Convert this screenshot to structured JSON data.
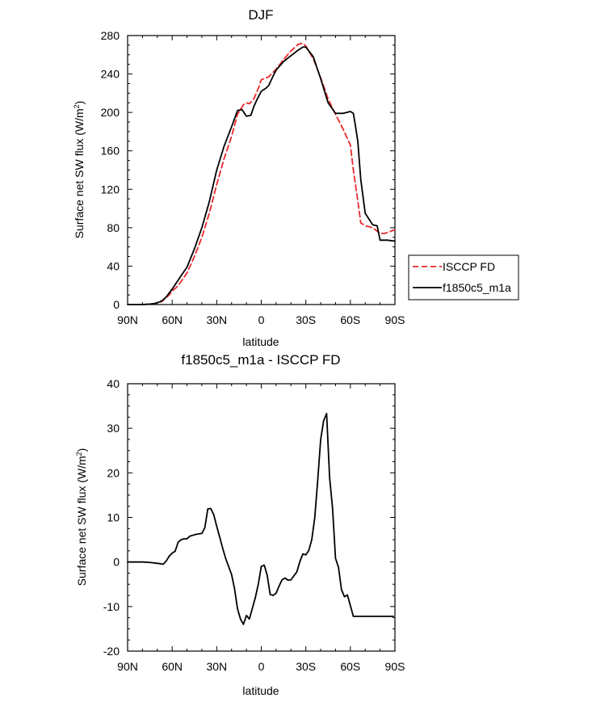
{
  "chart_data": [
    {
      "type": "line",
      "title": "DJF",
      "xlabel": "latitude",
      "ylabel": "Surface net SW flux (W/m",
      "ylabel_superscript": "2",
      "ylabel_suffix": ")",
      "xlim": [
        -90,
        90
      ],
      "ylim": [
        0,
        280
      ],
      "xticks": [
        -90,
        -60,
        -30,
        0,
        30,
        60,
        90
      ],
      "xtick_labels": [
        "90N",
        "60N",
        "30N",
        "0",
        "30S",
        "60S",
        "90S"
      ],
      "yticks": [
        0,
        40,
        80,
        120,
        160,
        200,
        240,
        280
      ],
      "ytick_labels": [
        "0",
        "40",
        "80",
        "120",
        "160",
        "200",
        "240",
        "280"
      ],
      "grid": false,
      "legend_position": "right",
      "series": [
        {
          "name": "ISCCP FD",
          "color": "#e8292b",
          "style": "dashed",
          "x": [
            -80,
            -75,
            -72,
            -70,
            -67,
            -65,
            -62,
            -60,
            -57,
            -54,
            -50,
            -45,
            -40,
            -35,
            -30,
            -25,
            -20,
            -16,
            -12,
            -10,
            -8,
            -5,
            -2,
            0,
            5,
            10,
            15,
            20,
            25,
            28,
            30,
            35,
            40,
            45,
            50,
            55,
            60,
            62,
            65,
            67,
            70,
            75,
            80,
            83,
            87,
            90
          ],
          "values": [
            0,
            0.5,
            1,
            2,
            3,
            6,
            10,
            14,
            18,
            24,
            33,
            50,
            70,
            95,
            125,
            152,
            175,
            198,
            208,
            210,
            209,
            214,
            225,
            234,
            237,
            245,
            255,
            264,
            271,
            272,
            269,
            256,
            236,
            214,
            198,
            183,
            166,
            140,
            108,
            85,
            82,
            80,
            74,
            74,
            76,
            78
          ]
        },
        {
          "name": "f1850c5_m1a",
          "color": "#000000",
          "style": "solid",
          "x": [
            -90,
            -85,
            -80,
            -75,
            -72,
            -70,
            -68,
            -66,
            -64,
            -62,
            -60,
            -57,
            -54,
            -50,
            -45,
            -40,
            -35,
            -30,
            -25,
            -20,
            -16,
            -13,
            -10,
            -7,
            -5,
            -3,
            0,
            3,
            5,
            8,
            10,
            15,
            20,
            25,
            28,
            30,
            35,
            40,
            45,
            50,
            55,
            60,
            62,
            63,
            65,
            67,
            70,
            75,
            78,
            80,
            85,
            90
          ],
          "values": [
            0,
            0,
            0,
            0.5,
            1,
            2,
            3,
            5,
            8,
            12,
            16,
            23,
            30,
            39,
            58,
            80,
            107,
            140,
            165,
            185,
            202,
            203,
            196,
            197,
            206,
            213,
            222,
            225,
            228,
            238,
            244,
            253,
            259,
            265,
            268,
            268,
            258,
            235,
            210,
            199,
            199,
            201,
            199,
            190,
            170,
            130,
            95,
            83,
            82,
            67,
            67,
            66
          ]
        }
      ]
    },
    {
      "type": "line",
      "title": "f1850c5_m1a - ISCCP FD",
      "xlabel": "latitude",
      "ylabel": "Surface net SW flux (W/m",
      "ylabel_superscript": "2",
      "ylabel_suffix": ")",
      "xlim": [
        -90,
        90
      ],
      "ylim": [
        -20,
        40
      ],
      "xticks": [
        -90,
        -60,
        -30,
        0,
        30,
        60,
        90
      ],
      "xtick_labels": [
        "90N",
        "60N",
        "30N",
        "0",
        "30S",
        "60S",
        "90S"
      ],
      "yticks": [
        -20,
        -10,
        0,
        10,
        20,
        30,
        40
      ],
      "ytick_labels": [
        "-20",
        "-10",
        "0",
        "10",
        "20",
        "30",
        "40"
      ],
      "grid": false,
      "series": [
        {
          "color": "#000000",
          "style": "solid",
          "x": [
            -90,
            -85,
            -80,
            -75,
            -70,
            -66,
            -64,
            -62,
            -60,
            -58,
            -56,
            -54,
            -52,
            -50,
            -48,
            -46,
            -44,
            -42,
            -40,
            -38,
            -36,
            -34,
            -32,
            -30,
            -28,
            -26,
            -24,
            -22,
            -20,
            -18,
            -16,
            -14,
            -12,
            -10,
            -8,
            -6,
            -4,
            -2,
            0,
            2,
            4,
            6,
            8,
            10,
            12,
            14,
            16,
            18,
            20,
            22,
            24,
            26,
            28,
            30,
            32,
            34,
            36,
            38,
            40,
            42,
            44,
            46,
            48,
            50,
            52,
            54,
            56,
            58,
            60,
            62,
            64,
            66,
            68,
            70,
            72,
            74,
            76,
            78,
            80,
            82,
            84,
            86,
            89
          ],
          "values": [
            0,
            0,
            0,
            -0.1,
            -0.3,
            -0.5,
            0.2,
            1.3,
            2,
            2.4,
            4.4,
            5,
            5.2,
            5.2,
            5.8,
            6,
            6.2,
            6.3,
            6.4,
            7.7,
            11.9,
            12,
            10.6,
            8,
            5.6,
            3.1,
            0.8,
            -1,
            -2.8,
            -6,
            -10.5,
            -12.8,
            -14,
            -12,
            -12.8,
            -10.4,
            -8,
            -5,
            -1,
            -0.7,
            -3,
            -7.3,
            -7.5,
            -7,
            -5.4,
            -4,
            -3.6,
            -4.1,
            -4,
            -3.1,
            -2.2,
            0.1,
            1.8,
            1.6,
            2.6,
            5,
            9.9,
            18.3,
            27.5,
            31.7,
            33.3,
            19,
            12,
            0.8,
            -1.2,
            -6.2,
            -7.8,
            -7.4,
            -9.8,
            -12.2,
            -12.2,
            -12.2,
            -12.2,
            -12.2,
            -12.2,
            -12.2,
            -12.2,
            -12.2,
            -12.2,
            -12.2,
            -12.2,
            -12.2,
            -12.2
          ]
        }
      ]
    }
  ]
}
